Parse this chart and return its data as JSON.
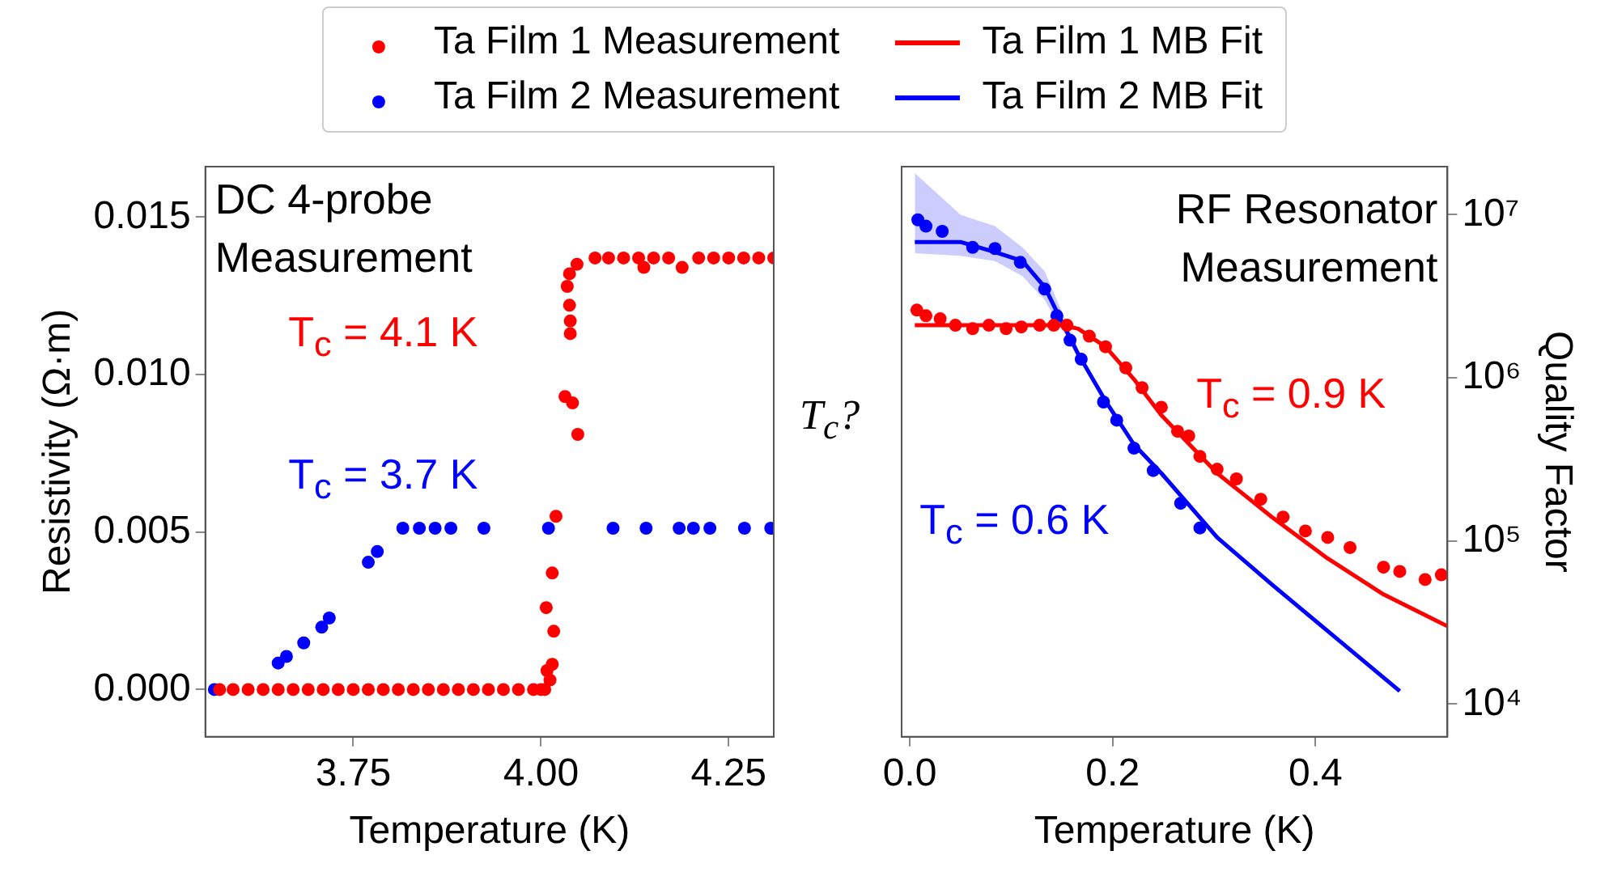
{
  "chart_data": [
    {
      "type": "scatter",
      "xlabel": "Temperature (K)",
      "ylabel": "Resistivity (Ω·m)",
      "xlim": [
        3.553,
        4.31
      ],
      "ylim": [
        -0.0015,
        0.0166
      ],
      "xticks": [
        3.75,
        {
          "value": 4,
          "label": "4.00"
        },
        4.25
      ],
      "yticks": [
        {
          "value": 0,
          "label": "0.000"
        },
        {
          "value": 0.005,
          "label": "0.005"
        },
        {
          "value": 0.01,
          "label": "0.010"
        },
        {
          "value": 0.015,
          "label": "0.015"
        }
      ],
      "grid": false,
      "marker": "circle",
      "legend": "top",
      "annotations": [
        "DC 4-probe Measurement",
        "T$_{c}$ = 4.1 K",
        "T$_{c}$ = 3.7 K"
      ],
      "series": [
        {
          "name": "Ta Film 1 Measurement",
          "color": "#ff0000",
          "x": [
            3.572,
            3.59,
            3.61,
            3.63,
            3.65,
            3.67,
            3.69,
            3.71,
            3.73,
            3.75,
            3.77,
            3.79,
            3.81,
            3.83,
            3.85,
            3.87,
            3.89,
            3.91,
            3.93,
            3.95,
            3.97,
            3.99,
            4.0,
            4.005,
            4.008,
            4.012,
            4.015,
            4.007,
            4.015,
            4.017,
            4.02,
            4.032,
            4.042,
            4.049,
            4.039,
            4.039,
            4.038,
            4.035,
            4.038,
            4.048,
            4.072,
            4.09,
            4.11,
            4.13,
            4.137,
            4.15,
            4.17,
            4.188,
            4.21,
            4.23,
            4.25,
            4.27,
            4.29,
            4.31
          ],
          "values": [
            0,
            0,
            0,
            0,
            0,
            0,
            0,
            0,
            0,
            0,
            0,
            0,
            0,
            0,
            0,
            0,
            0,
            0,
            0,
            0,
            0,
            0,
            0,
            0,
            0.0006,
            0.0003,
            0.0008,
            0.0026,
            0.0037,
            0.00185,
            0.0055,
            0.0093,
            0.0091,
            0.0081,
            0.0113,
            0.0117,
            0.0122,
            0.0128,
            0.0132,
            0.0135,
            0.0137,
            0.0137,
            0.0137,
            0.0137,
            0.0134,
            0.0137,
            0.0137,
            0.0134,
            0.0137,
            0.0137,
            0.0137,
            0.0137,
            0.0137,
            0.0137
          ]
        },
        {
          "name": "Ta Film 2 Measurement",
          "color": "#0000ff",
          "x": [
            3.565,
            3.65,
            3.661,
            3.684,
            3.708,
            3.718,
            3.77,
            3.782,
            3.816,
            3.838,
            3.859,
            3.88,
            3.924,
            4.01,
            4.096,
            4.14,
            4.184,
            4.203,
            4.225,
            4.271,
            4.306
          ],
          "values": [
            0,
            0.00084,
            0.00105,
            0.00148,
            0.00198,
            0.00227,
            0.00404,
            0.00438,
            0.00512,
            0.00512,
            0.00512,
            0.00512,
            0.00512,
            0.00512,
            0.00512,
            0.00512,
            0.00512,
            0.00512,
            0.00512,
            0.00512,
            0.00512
          ]
        }
      ]
    },
    {
      "type": "scatter",
      "xlabel": "Temperature (K)",
      "y2label": "Quality Factor",
      "xlim": [
        -0.008,
        0.53
      ],
      "y2lim": [
        6300,
        19700000
      ],
      "log": "y2",
      "xticks": [
        {
          "value": 0,
          "label": "0.0"
        },
        {
          "value": 0.2,
          "label": "0.2"
        },
        {
          "value": 0.4,
          "label": "0.4"
        }
      ],
      "y2ticks": [
        {
          "value": 10000,
          "label": "10⁴"
        },
        {
          "value": 100000,
          "label": "10⁵"
        },
        {
          "value": 1000000,
          "label": "10⁶"
        },
        {
          "value": 10000000,
          "label": "10⁷"
        }
      ],
      "grid": false,
      "legend": "top",
      "annotations": [
        "RF Resonator Measurement",
        "T$_{c}$?",
        "T$_{c}$ = 0.9 K",
        "T$_{c}$ = 0.6 K"
      ],
      "series": [
        {
          "color": "#ff0000",
          "axis": "y2",
          "marker": "circle",
          "x": [
            0.007,
            0.016,
            0.03,
            0.045,
            0.062,
            0.078,
            0.095,
            0.11,
            0.128,
            0.142,
            0.155,
            0.177,
            0.193,
            0.213,
            0.229,
            0.248,
            0.264,
            0.275,
            0.286,
            0.303,
            0.322,
            0.346,
            0.368,
            0.39,
            0.412,
            0.434,
            0.467,
            0.483,
            0.508,
            0.524
          ],
          "values": [
            2600000,
            2400000,
            2300000,
            2100000,
            2000000,
            2100000,
            2000000,
            2050000,
            2100000,
            2100000,
            2100000,
            1800000,
            1550000,
            1150000,
            870000,
            660000,
            470000,
            440000,
            330000,
            275000,
            240000,
            180000,
            140000,
            115000,
            105000,
            91000,
            69000,
            65000,
            58000,
            62000
          ]
        },
        {
          "color": "#0000ff",
          "axis": "y2",
          "marker": "circle",
          "x": [
            0.008,
            0.016,
            0.032,
            0.062,
            0.084,
            0.109,
            0.133,
            0.145,
            0.158,
            0.169,
            0.191,
            0.204,
            0.221,
            0.24,
            0.267,
            0.286
          ],
          "values": [
            9300000,
            8500000,
            7900000,
            6300000,
            6200000,
            5100000,
            3500000,
            2400000,
            1700000,
            1300000,
            710000,
            550000,
            370000,
            270000,
            170000,
            120000
          ]
        },
        {
          "name": "Ta Film 1 MB Fit",
          "type": "line",
          "marker": "none",
          "color": "#ff0000",
          "axis": "y2",
          "x": [
            0.005,
            0.05,
            0.1,
            0.15,
            0.166,
            0.193,
            0.221,
            0.248,
            0.303,
            0.357,
            0.412,
            0.467,
            0.53
          ],
          "values": [
            2100000,
            2100000,
            2100000,
            2100000,
            2000000,
            1550000,
            980000,
            590000,
            260000,
            140000,
            78000,
            47000,
            30000
          ]
        },
        {
          "name": "Ta Film 2 MB Fit",
          "type": "line",
          "marker": "none",
          "color": "#0000ff",
          "axis": "y2",
          "x": [
            0.005,
            0.05,
            0.084,
            0.111,
            0.133,
            0.147,
            0.166,
            0.193,
            0.221,
            0.248,
            0.303,
            0.357,
            0.412,
            0.483
          ],
          "values": [
            6800000,
            6800000,
            5900000,
            5200000,
            3600000,
            2400000,
            1400000,
            720000,
            390000,
            260000,
            105000,
            54000,
            28000,
            12000
          ],
          "upper": [
            18000000,
            10000000,
            8500000,
            6300000,
            4500000,
            2800000,
            1500000,
            null,
            null,
            null,
            null,
            null,
            null,
            null
          ],
          "lower": [
            5800000,
            5600000,
            5200000,
            4200000,
            3000000,
            2100000,
            1400000,
            null,
            null,
            null,
            null,
            null,
            null,
            null
          ]
        }
      ]
    }
  ]
}
